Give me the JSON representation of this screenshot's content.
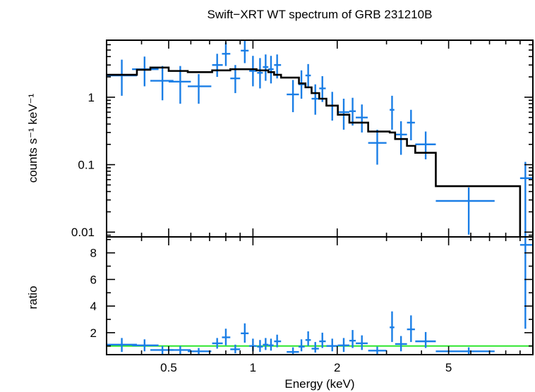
{
  "chart_data": [
    {
      "type": "scatter",
      "title": "Swift−XRT WT spectrum of GRB 231210B",
      "xlabel": "",
      "ylabel": "counts s⁻¹ keV⁻¹",
      "x_scale": "log",
      "y_scale": "log",
      "xlim": [
        0.3,
        10
      ],
      "ylim": [
        0.0085,
        7
      ],
      "y_ticks": [
        0.01,
        0.1,
        1
      ],
      "y_tick_labels": [
        "0.01",
        "0.1",
        "1"
      ],
      "grid": false,
      "colors": {
        "data": "#1a7ee6",
        "model": "#000000"
      },
      "series": [
        {
          "style": "crosses",
          "points": [
            {
              "x": 0.34,
              "xlo": 0.3,
              "xhi": 0.385,
              "y": 2.1,
              "ylo": 1.05,
              "yhi": 3.6
            },
            {
              "x": 0.41,
              "xlo": 0.37,
              "xhi": 0.46,
              "y": 2.6,
              "ylo": 1.45,
              "yhi": 4.0
            },
            {
              "x": 0.475,
              "xlo": 0.43,
              "xhi": 0.52,
              "y": 1.75,
              "ylo": 0.9,
              "yhi": 2.9
            },
            {
              "x": 0.55,
              "xlo": 0.5,
              "xhi": 0.6,
              "y": 1.7,
              "ylo": 0.8,
              "yhi": 2.9
            },
            {
              "x": 0.64,
              "xlo": 0.585,
              "xhi": 0.71,
              "y": 1.45,
              "ylo": 0.8,
              "yhi": 2.2
            },
            {
              "x": 0.745,
              "xlo": 0.715,
              "xhi": 0.78,
              "y": 3.0,
              "ylo": 2.0,
              "yhi": 4.4
            },
            {
              "x": 0.8,
              "xlo": 0.775,
              "xhi": 0.83,
              "y": 4.4,
              "ylo": 2.9,
              "yhi": 6.5
            },
            {
              "x": 0.865,
              "xlo": 0.83,
              "xhi": 0.9,
              "y": 1.9,
              "ylo": 1.15,
              "yhi": 3.0
            },
            {
              "x": 0.935,
              "xlo": 0.905,
              "xhi": 0.965,
              "y": 4.9,
              "ylo": 3.2,
              "yhi": 6.9
            },
            {
              "x": 1.0,
              "xlo": 0.97,
              "xhi": 1.03,
              "y": 2.45,
              "ylo": 1.45,
              "yhi": 4.1
            },
            {
              "x": 1.06,
              "xlo": 1.035,
              "xhi": 1.085,
              "y": 2.3,
              "ylo": 1.35,
              "yhi": 3.8
            },
            {
              "x": 1.11,
              "xlo": 1.085,
              "xhi": 1.135,
              "y": 2.8,
              "ylo": 1.75,
              "yhi": 4.3
            },
            {
              "x": 1.16,
              "xlo": 1.135,
              "xhi": 1.185,
              "y": 2.6,
              "ylo": 1.6,
              "yhi": 4.1
            },
            {
              "x": 1.22,
              "xlo": 1.19,
              "xhi": 1.26,
              "y": 3.0,
              "ylo": 1.9,
              "yhi": 4.3
            },
            {
              "x": 1.39,
              "xlo": 1.32,
              "xhi": 1.46,
              "y": 1.1,
              "ylo": 0.6,
              "yhi": 1.8
            },
            {
              "x": 1.49,
              "xlo": 1.455,
              "xhi": 1.53,
              "y": 1.55,
              "ylo": 0.95,
              "yhi": 2.5
            },
            {
              "x": 1.575,
              "xlo": 1.54,
              "xhi": 1.61,
              "y": 2.1,
              "ylo": 1.4,
              "yhi": 3.1
            },
            {
              "x": 1.67,
              "xlo": 1.62,
              "xhi": 1.72,
              "y": 0.95,
              "ylo": 0.55,
              "yhi": 1.55
            },
            {
              "x": 1.77,
              "xlo": 1.725,
              "xhi": 1.82,
              "y": 1.35,
              "ylo": 0.85,
              "yhi": 2.05
            },
            {
              "x": 1.92,
              "xlo": 1.83,
              "xhi": 2.01,
              "y": 0.75,
              "ylo": 0.45,
              "yhi": 1.2
            },
            {
              "x": 2.11,
              "xlo": 2.01,
              "xhi": 2.21,
              "y": 0.6,
              "ylo": 0.33,
              "yhi": 0.95
            },
            {
              "x": 2.27,
              "xlo": 2.21,
              "xhi": 2.33,
              "y": 0.62,
              "ylo": 0.38,
              "yhi": 0.98
            },
            {
              "x": 2.45,
              "xlo": 2.33,
              "xhi": 2.57,
              "y": 0.5,
              "ylo": 0.3,
              "yhi": 0.78
            },
            {
              "x": 2.78,
              "xlo": 2.58,
              "xhi": 3.0,
              "y": 0.21,
              "ylo": 0.1,
              "yhi": 0.33
            },
            {
              "x": 3.14,
              "xlo": 3.08,
              "xhi": 3.2,
              "y": 0.65,
              "ylo": 0.33,
              "yhi": 1.05
            },
            {
              "x": 3.38,
              "xlo": 3.22,
              "xhi": 3.55,
              "y": 0.28,
              "ylo": 0.14,
              "yhi": 0.44
            },
            {
              "x": 3.67,
              "xlo": 3.55,
              "xhi": 3.79,
              "y": 0.42,
              "ylo": 0.23,
              "yhi": 0.65
            },
            {
              "x": 4.14,
              "xlo": 3.8,
              "xhi": 4.5,
              "y": 0.2,
              "ylo": 0.12,
              "yhi": 0.31
            },
            {
              "x": 5.9,
              "xlo": 4.5,
              "xhi": 7.3,
              "y": 0.029,
              "ylo": 0.0092,
              "yhi": 0.046
            },
            {
              "x": 9.4,
              "xlo": 9.0,
              "xhi": 10.0,
              "y": 0.063,
              "ylo": 0.0085,
              "yhi": 0.11
            }
          ]
        },
        {
          "style": "model-histogram",
          "steps": [
            {
              "xlo": 0.3,
              "xhi": 0.385,
              "y": 2.15
            },
            {
              "xlo": 0.385,
              "xhi": 0.43,
              "y": 2.55
            },
            {
              "xlo": 0.43,
              "xhi": 0.5,
              "y": 2.75
            },
            {
              "xlo": 0.5,
              "xhi": 0.585,
              "y": 2.45
            },
            {
              "xlo": 0.585,
              "xhi": 0.715,
              "y": 2.35
            },
            {
              "xlo": 0.715,
              "xhi": 0.83,
              "y": 2.5
            },
            {
              "xlo": 0.83,
              "xhi": 1.03,
              "y": 2.6
            },
            {
              "xlo": 1.03,
              "xhi": 1.135,
              "y": 2.5
            },
            {
              "xlo": 1.135,
              "xhi": 1.19,
              "y": 2.35
            },
            {
              "xlo": 1.19,
              "xhi": 1.26,
              "y": 2.15
            },
            {
              "xlo": 1.26,
              "xhi": 1.46,
              "y": 1.95
            },
            {
              "xlo": 1.46,
              "xhi": 1.54,
              "y": 1.6
            },
            {
              "xlo": 1.54,
              "xhi": 1.62,
              "y": 1.4
            },
            {
              "xlo": 1.62,
              "xhi": 1.725,
              "y": 1.15
            },
            {
              "xlo": 1.725,
              "xhi": 1.83,
              "y": 0.95
            },
            {
              "xlo": 1.83,
              "xhi": 2.01,
              "y": 0.75
            },
            {
              "xlo": 2.01,
              "xhi": 2.21,
              "y": 0.55
            },
            {
              "xlo": 2.21,
              "xhi": 2.33,
              "y": 0.42
            },
            {
              "xlo": 2.33,
              "xhi": 2.58,
              "y": 0.42
            },
            {
              "xlo": 2.58,
              "xhi": 3.08,
              "y": 0.31
            },
            {
              "xlo": 3.08,
              "xhi": 3.22,
              "y": 0.3
            },
            {
              "xlo": 3.22,
              "xhi": 3.55,
              "y": 0.24
            },
            {
              "xlo": 3.55,
              "xhi": 3.8,
              "y": 0.19
            },
            {
              "xlo": 3.8,
              "xhi": 4.5,
              "y": 0.15
            },
            {
              "xlo": 4.5,
              "xhi": 9.0,
              "y": 0.048
            }
          ]
        }
      ]
    },
    {
      "type": "scatter",
      "title": "",
      "xlabel": "Energy (keV)",
      "ylabel": "ratio",
      "x_scale": "log",
      "y_scale": "linear",
      "xlim": [
        0.3,
        10
      ],
      "ylim": [
        0.35,
        9.2
      ],
      "x_ticks": [
        0.5,
        1,
        2,
        5
      ],
      "x_tick_labels": [
        "0.5",
        "1",
        "2",
        "5"
      ],
      "y_ticks": [
        2,
        4,
        6,
        8
      ],
      "y_tick_labels": [
        "2",
        "4",
        "6",
        "8"
      ],
      "reference_line": 1,
      "grid": false,
      "colors": {
        "data": "#1a7ee6",
        "reference": "#2ee62e"
      },
      "series": [
        {
          "style": "crosses",
          "points": [
            {
              "x": 0.34,
              "xlo": 0.3,
              "xhi": 0.385,
              "y": 1.1,
              "ylo": 0.55,
              "yhi": 1.6
            },
            {
              "x": 0.41,
              "xlo": 0.37,
              "xhi": 0.46,
              "y": 1.05,
              "ylo": 0.6,
              "yhi": 1.5
            },
            {
              "x": 0.475,
              "xlo": 0.43,
              "xhi": 0.52,
              "y": 0.7,
              "ylo": 0.4,
              "yhi": 1.0
            },
            {
              "x": 0.55,
              "xlo": 0.5,
              "xhi": 0.6,
              "y": 0.7,
              "ylo": 0.4,
              "yhi": 1.0
            },
            {
              "x": 0.64,
              "xlo": 0.585,
              "xhi": 0.71,
              "y": 0.6,
              "ylo": 0.4,
              "yhi": 0.85
            },
            {
              "x": 0.745,
              "xlo": 0.715,
              "xhi": 0.78,
              "y": 1.2,
              "ylo": 0.8,
              "yhi": 1.6
            },
            {
              "x": 0.8,
              "xlo": 0.775,
              "xhi": 0.83,
              "y": 1.65,
              "ylo": 1.05,
              "yhi": 2.3
            },
            {
              "x": 0.865,
              "xlo": 0.83,
              "xhi": 0.9,
              "y": 0.75,
              "ylo": 0.45,
              "yhi": 1.1
            },
            {
              "x": 0.935,
              "xlo": 0.905,
              "xhi": 0.965,
              "y": 1.95,
              "ylo": 1.25,
              "yhi": 2.7
            },
            {
              "x": 1.0,
              "xlo": 0.97,
              "xhi": 1.03,
              "y": 1.0,
              "ylo": 0.6,
              "yhi": 1.55
            },
            {
              "x": 1.06,
              "xlo": 1.035,
              "xhi": 1.085,
              "y": 0.95,
              "ylo": 0.55,
              "yhi": 1.45
            },
            {
              "x": 1.11,
              "xlo": 1.085,
              "xhi": 1.135,
              "y": 1.1,
              "ylo": 0.7,
              "yhi": 1.6
            },
            {
              "x": 1.16,
              "xlo": 1.135,
              "xhi": 1.185,
              "y": 1.05,
              "ylo": 0.65,
              "yhi": 1.55
            },
            {
              "x": 1.22,
              "xlo": 1.19,
              "xhi": 1.26,
              "y": 1.35,
              "ylo": 0.9,
              "yhi": 1.85
            },
            {
              "x": 1.39,
              "xlo": 1.32,
              "xhi": 1.46,
              "y": 0.55,
              "ylo": 0.35,
              "yhi": 0.9
            },
            {
              "x": 1.49,
              "xlo": 1.455,
              "xhi": 1.53,
              "y": 0.95,
              "ylo": 0.6,
              "yhi": 1.5
            },
            {
              "x": 1.575,
              "xlo": 1.54,
              "xhi": 1.61,
              "y": 1.45,
              "ylo": 1.0,
              "yhi": 2.1
            },
            {
              "x": 1.67,
              "xlo": 1.62,
              "xhi": 1.72,
              "y": 0.8,
              "ylo": 0.5,
              "yhi": 1.3
            },
            {
              "x": 1.77,
              "xlo": 1.725,
              "xhi": 1.82,
              "y": 1.35,
              "ylo": 0.85,
              "yhi": 2.0
            },
            {
              "x": 1.92,
              "xlo": 1.83,
              "xhi": 2.01,
              "y": 1.0,
              "ylo": 0.6,
              "yhi": 1.55
            },
            {
              "x": 2.11,
              "xlo": 2.01,
              "xhi": 2.21,
              "y": 1.05,
              "ylo": 0.55,
              "yhi": 1.6
            },
            {
              "x": 2.27,
              "xlo": 2.21,
              "xhi": 2.33,
              "y": 1.4,
              "ylo": 0.85,
              "yhi": 2.2
            },
            {
              "x": 2.45,
              "xlo": 2.33,
              "xhi": 2.57,
              "y": 1.2,
              "ylo": 0.7,
              "yhi": 1.8
            },
            {
              "x": 2.78,
              "xlo": 2.58,
              "xhi": 3.0,
              "y": 0.65,
              "ylo": 0.4,
              "yhi": 0.95
            },
            {
              "x": 3.14,
              "xlo": 3.08,
              "xhi": 3.2,
              "y": 2.4,
              "ylo": 1.3,
              "yhi": 3.6
            },
            {
              "x": 3.38,
              "xlo": 3.22,
              "xhi": 3.55,
              "y": 1.15,
              "ylo": 0.6,
              "yhi": 1.75
            },
            {
              "x": 3.67,
              "xlo": 3.55,
              "xhi": 3.79,
              "y": 2.25,
              "ylo": 1.3,
              "yhi": 3.3
            },
            {
              "x": 4.14,
              "xlo": 3.8,
              "xhi": 4.5,
              "y": 1.35,
              "ylo": 0.85,
              "yhi": 2.05
            },
            {
              "x": 5.9,
              "xlo": 4.5,
              "xhi": 7.3,
              "y": 0.6,
              "ylo": 0.35,
              "yhi": 0.9
            },
            {
              "x": 9.4,
              "xlo": 9.0,
              "xhi": 10.0,
              "y": 8.6,
              "ylo": 2.3,
              "yhi": 9.2
            }
          ]
        }
      ]
    }
  ]
}
